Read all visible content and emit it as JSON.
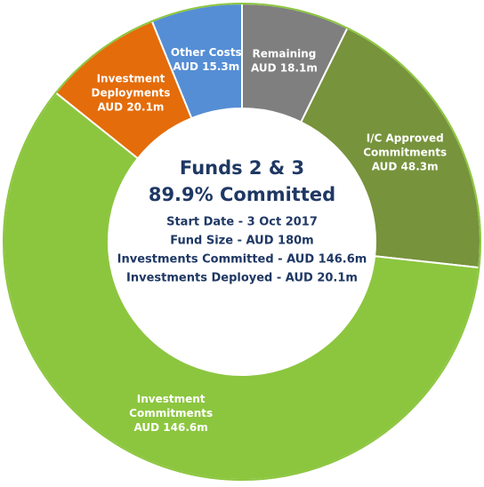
{
  "chart_data": {
    "type": "donut",
    "title": "Funds 2 & 3",
    "subtitle": "89.9% Committed",
    "notes": [
      "Start Date - 3 Oct 2017",
      "Fund Size - AUD 180m",
      "Investments Committed - AUD 146.6m",
      "Investments Deployed - AUD 20.1m"
    ],
    "categories": [
      [
        "Remaining"
      ],
      [
        "I/C Approved",
        "Commitments"
      ],
      [
        "Investment",
        "Commitments"
      ],
      [
        "Investment",
        "Deployments"
      ],
      [
        "Other Costs"
      ]
    ],
    "values": [
      18.1,
      48.3,
      146.6,
      20.1,
      15.3
    ],
    "value_labels": [
      "AUD 18.1m",
      "AUD 48.3m",
      "AUD 146.6m",
      "AUD 20.1m",
      "AUD 15.3m"
    ],
    "colors": [
      "#7f7f7f",
      "#77933c",
      "#8cc63f",
      "#e46c0a",
      "#558ed5"
    ]
  }
}
